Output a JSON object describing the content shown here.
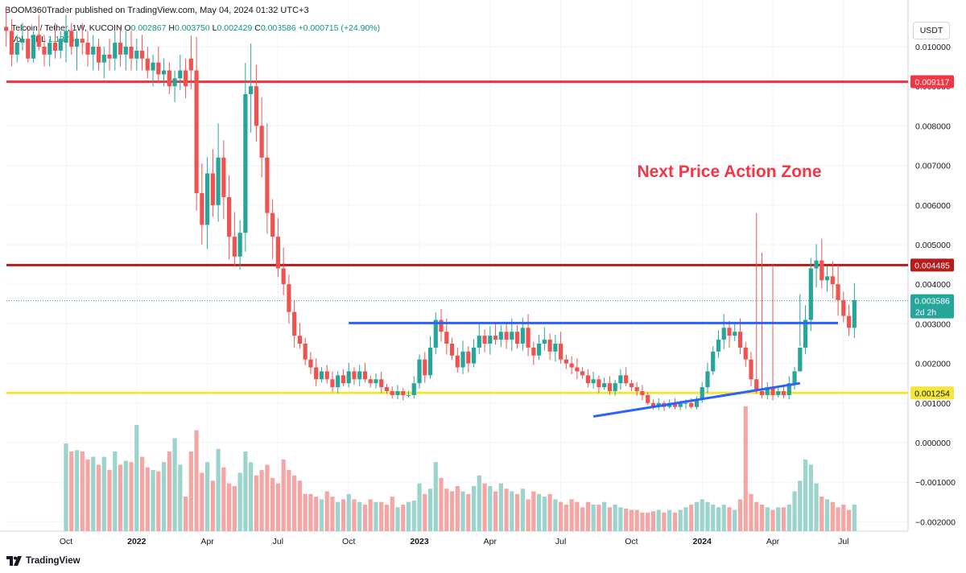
{
  "header": {
    "published": "BOOM360Trader published on TradingView.com, May 04, 2024 01:32 UTC+3",
    "symbol": "Telcoin / Tether, 1W, KUCOIN",
    "o_label": "O",
    "o_value": "0.002867",
    "h_label": "H",
    "h_value": "0.003750",
    "l_label": "L",
    "l_value": "0.002429",
    "c_label": "C",
    "c_value": "0.003586",
    "change": "+0.000715 (+24.90%)",
    "vol_label": "Vol · TEL",
    "vol_value": "1.137B"
  },
  "currency_button": "USDT",
  "footer": {
    "brand": "TradingView"
  },
  "colors": {
    "up": "#26a69a",
    "down": "#ef5350",
    "up_vol": "#9bd3cd",
    "down_vol": "#f4a6a4",
    "resistance_top": "#f23645",
    "resistance_mid": "#b71c1c",
    "support": "#f5e63c",
    "trend": "#2962ff"
  },
  "chart_data": {
    "type": "candlestick",
    "title": "Telcoin / Tether, 1W, KUCOIN",
    "annotation": "Next Price Action Zone",
    "ylim": [
      -0.0022,
      0.0107
    ],
    "y_ticks": [
      "0.010000",
      "0.009000",
      "0.008000",
      "0.007000",
      "0.006000",
      "0.005000",
      "0.004000",
      "0.003000",
      "0.002000",
      "0.001000",
      "0.000000",
      "−0.001000",
      "−0.002000"
    ],
    "y_tick_values": [
      0.01,
      0.009,
      0.008,
      0.007,
      0.006,
      0.005,
      0.004,
      0.003,
      0.002,
      0.001,
      0.0,
      -0.001,
      -0.002
    ],
    "x_ticks": [
      {
        "label": "Oct",
        "week": 0
      },
      {
        "label": "2022",
        "week": 13
      },
      {
        "label": "Apr",
        "week": 26
      },
      {
        "label": "Jul",
        "week": 39
      },
      {
        "label": "Oct",
        "week": 52
      },
      {
        "label": "2023",
        "week": 65
      },
      {
        "label": "Apr",
        "week": 78
      },
      {
        "label": "Jul",
        "week": 91
      },
      {
        "label": "Oct",
        "week": 104
      },
      {
        "label": "2024",
        "week": 117
      },
      {
        "label": "Apr",
        "week": 130
      },
      {
        "label": "Jul",
        "week": 143
      }
    ],
    "first_week_offset": -11,
    "horizontal_levels": [
      {
        "value": 0.009117,
        "label": "0.009117",
        "color": "#f23645"
      },
      {
        "value": 0.004485,
        "label": "0.004485",
        "color": "#b71c1c"
      },
      {
        "value": 0.001254,
        "label": "0.001254",
        "color": "#f5e63c"
      }
    ],
    "last_price": {
      "value": 0.003586,
      "label": "0.003586",
      "countdown": "2d 2h"
    },
    "trendlines": [
      {
        "from": {
          "week": 52,
          "value": 0.00302
        },
        "to": {
          "week": 142,
          "value": 0.00302
        }
      },
      {
        "from": {
          "week": 97,
          "value": 0.00066
        },
        "to": {
          "week": 135,
          "value": 0.0015
        }
      }
    ],
    "candles": [
      [
        0.0105,
        0.011,
        0.01,
        0.0104,
        0.0
      ],
      [
        0.0104,
        0.0107,
        0.0095,
        0.0098,
        0.0
      ],
      [
        0.0098,
        0.0103,
        0.0096,
        0.0101,
        0.0
      ],
      [
        0.0101,
        0.0106,
        0.0099,
        0.0102,
        0.0
      ],
      [
        0.0102,
        0.0105,
        0.0096,
        0.0097,
        0.0
      ],
      [
        0.0097,
        0.0104,
        0.0096,
        0.0103,
        0.0
      ],
      [
        0.0103,
        0.0108,
        0.0099,
        0.01,
        0.0
      ],
      [
        0.01,
        0.0103,
        0.0095,
        0.0098,
        0.0
      ],
      [
        0.0098,
        0.0102,
        0.0095,
        0.0101,
        0.0
      ],
      [
        0.0101,
        0.0106,
        0.0097,
        0.0099,
        0.0
      ],
      [
        0.0099,
        0.0104,
        0.0097,
        0.0102,
        0.0
      ],
      [
        0.0101,
        0.0108,
        0.0096,
        0.0104,
        330
      ],
      [
        0.0104,
        0.0106,
        0.0098,
        0.01,
        300
      ],
      [
        0.01,
        0.0104,
        0.0094,
        0.0102,
        305
      ],
      [
        0.0102,
        0.0106,
        0.0098,
        0.0101,
        300
      ],
      [
        0.0101,
        0.0104,
        0.0095,
        0.0098,
        270
      ],
      [
        0.0098,
        0.0103,
        0.0094,
        0.01,
        280
      ],
      [
        0.01,
        0.0102,
        0.0094,
        0.0096,
        250
      ],
      [
        0.0096,
        0.01,
        0.0092,
        0.0098,
        280
      ],
      [
        0.0098,
        0.0102,
        0.0094,
        0.0097,
        230
      ],
      [
        0.0097,
        0.0104,
        0.0094,
        0.0101,
        300
      ],
      [
        0.0101,
        0.0105,
        0.0095,
        0.0098,
        250
      ],
      [
        0.0098,
        0.0104,
        0.0094,
        0.01,
        265
      ],
      [
        0.01,
        0.0104,
        0.0094,
        0.0097,
        260
      ],
      [
        0.0097,
        0.0102,
        0.0094,
        0.0099,
        400
      ],
      [
        0.0099,
        0.0103,
        0.0094,
        0.0097,
        280
      ],
      [
        0.0097,
        0.01,
        0.0092,
        0.0094,
        240
      ],
      [
        0.0094,
        0.0098,
        0.009,
        0.0096,
        230
      ],
      [
        0.0096,
        0.01,
        0.0091,
        0.0093,
        225
      ],
      [
        0.0093,
        0.0097,
        0.009,
        0.0094,
        260
      ],
      [
        0.0094,
        0.0096,
        0.0088,
        0.009,
        300
      ],
      [
        0.009,
        0.0094,
        0.0086,
        0.0092,
        350
      ],
      [
        0.0092,
        0.0098,
        0.0089,
        0.0094,
        250
      ],
      [
        0.0094,
        0.0097,
        0.0087,
        0.009,
        130
      ]
    ]
  }
}
